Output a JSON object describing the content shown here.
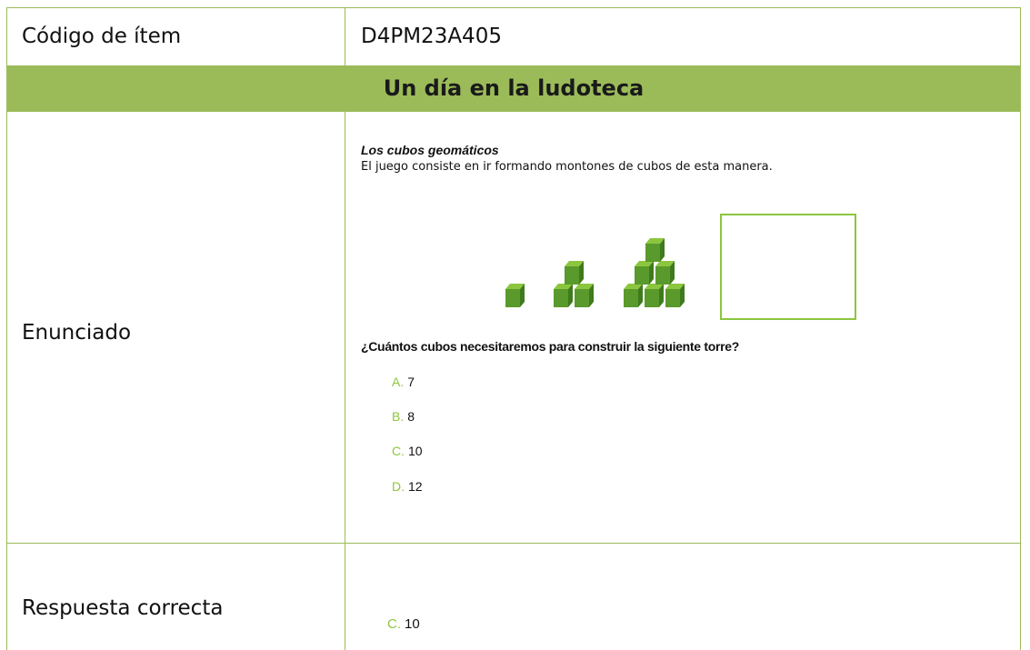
{
  "item_code": {
    "label": "Código de ítem",
    "value": "D4PM23A405"
  },
  "title": "Un día en la ludoteca",
  "statement": {
    "label": "Enunciado",
    "heading": "Los cubos geomáticos",
    "text": "El juego consiste en ir formando montones de cubos de esta manera.",
    "question": "¿Cuántos cubos necesitaremos para construir la siguiente torre?",
    "options": [
      {
        "letter": "A.",
        "text": "7"
      },
      {
        "letter": "B.",
        "text": "8"
      },
      {
        "letter": "C.",
        "text": "10"
      },
      {
        "letter": "D.",
        "text": "12"
      }
    ]
  },
  "answer": {
    "label": "Respuesta correcta",
    "letter": "C.",
    "text": "10"
  }
}
